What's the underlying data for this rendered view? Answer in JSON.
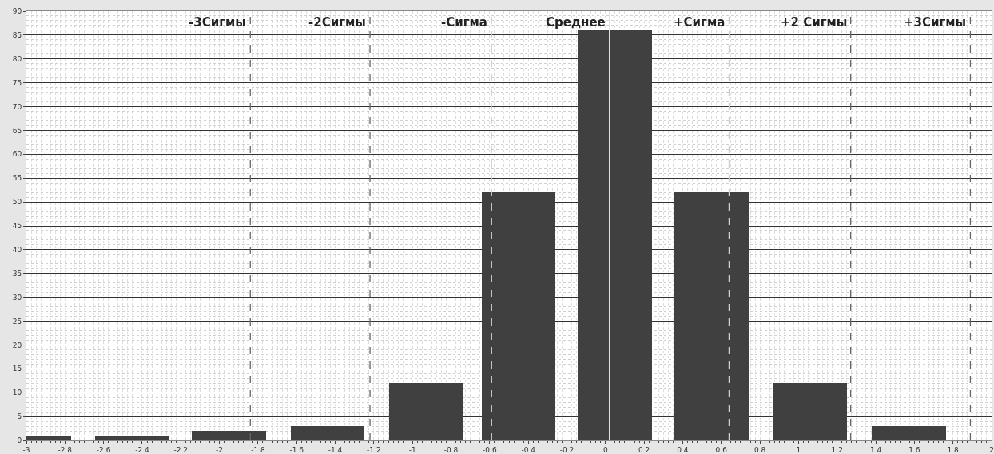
{
  "chart_data": {
    "type": "bar",
    "x": [
      -2.96,
      -2.45,
      -1.95,
      -1.44,
      -0.93,
      -0.45,
      0.05,
      0.55,
      1.06,
      1.57
    ],
    "values": [
      1,
      1,
      2,
      3,
      12,
      52,
      86,
      52,
      12,
      3
    ],
    "color": "#404040",
    "xlim": [
      -3,
      2
    ],
    "xticks": [
      -3,
      -2.8,
      -2.6,
      -2.4,
      -2.2,
      -2,
      -1.8,
      -1.6,
      -1.4,
      -1.2,
      -1,
      -0.8,
      -0.6,
      -0.4,
      -0.2,
      0,
      0.2,
      0.4,
      0.6,
      0.8,
      1,
      1.2,
      1.4,
      1.6,
      1.8,
      2
    ],
    "ylim": [
      0,
      90
    ],
    "yticks": [
      0,
      5,
      10,
      15,
      20,
      25,
      30,
      35,
      40,
      45,
      50,
      55,
      60,
      65,
      70,
      75,
      80,
      85,
      90
    ],
    "grid": true,
    "ref_lines": [
      {
        "axis": "x",
        "value": -1.84,
        "label": "-3Сигмы",
        "color": "#666666",
        "line_style": "dashed"
      },
      {
        "axis": "x",
        "value": -1.22,
        "label": "-2Сигмы",
        "color": "#666666",
        "line_style": "dashed"
      },
      {
        "axis": "x",
        "value": -0.59,
        "label": "-Сигма",
        "color": "#d0d0d0",
        "line_style": "dashed"
      },
      {
        "axis": "x",
        "value": 0.02,
        "label": "Среднее",
        "color": "#e0e0e0",
        "line_style": "solid"
      },
      {
        "axis": "x",
        "value": 0.64,
        "label": "+Сигма",
        "color": "#d0d0d0",
        "line_style": "dashed"
      },
      {
        "axis": "x",
        "value": 1.27,
        "label": "+2 Сигмы",
        "color": "#666666",
        "line_style": "dashed"
      },
      {
        "axis": "x",
        "value": 1.89,
        "label": "+3Сигмы",
        "color": "#666666",
        "line_style": "dashed"
      }
    ]
  }
}
